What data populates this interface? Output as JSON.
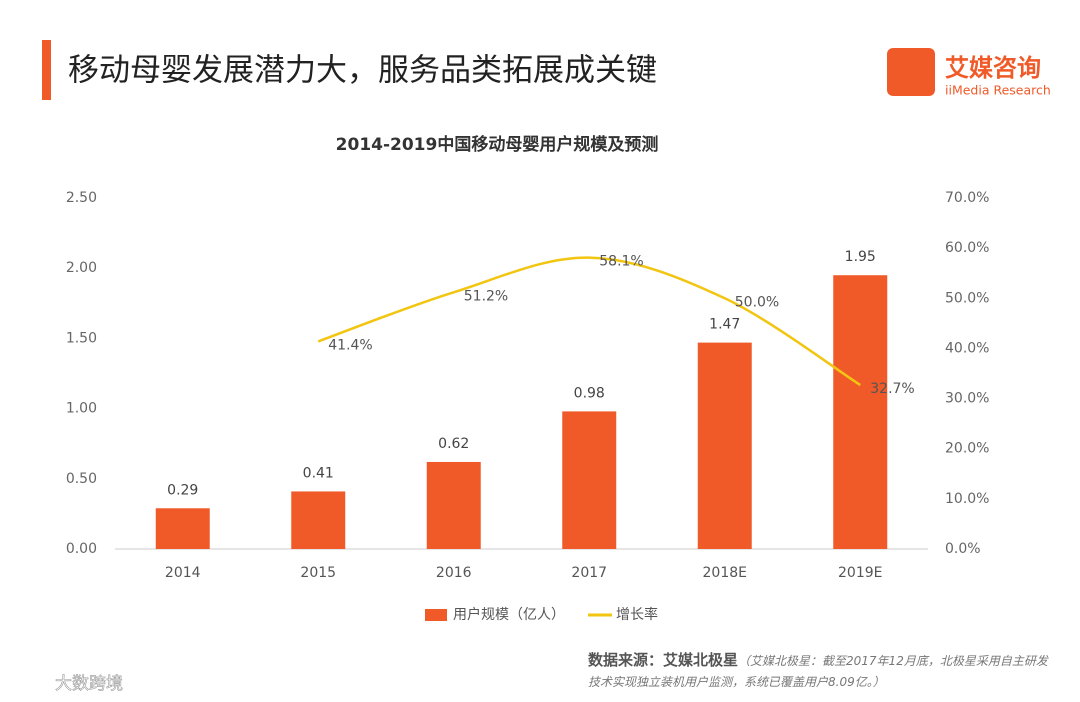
{
  "header": {
    "title": "移动母婴发展潜力大，服务品类拓展成关键",
    "logo": "艾媒咨询",
    "logo_sub": "iiMedia Research"
  },
  "chart_data": {
    "type": "bar",
    "title": "2014-2019中国移动母婴用户规模及预测",
    "categories": [
      "2014",
      "2015",
      "2016",
      "2017",
      "2018E",
      "2019E"
    ],
    "series": [
      {
        "name": "用户规模（亿人）",
        "color": "#f05a28",
        "values": [
          0.29,
          0.41,
          0.62,
          0.98,
          1.47,
          1.95
        ]
      },
      {
        "name": "增长率",
        "type": "line",
        "axis": "y2",
        "color": "#f2c511",
        "values": [
          null,
          41.4,
          51.2,
          58.1,
          50.0,
          32.7
        ],
        "value_labels": [
          null,
          "41.4%",
          "51.2%",
          "58.1%",
          "50.0%",
          "32.7%"
        ]
      }
    ],
    "ylim": [
      0,
      2.5
    ],
    "yticks": [
      {
        "value": 0,
        "label": "0.00"
      },
      {
        "value": 0.5,
        "label": "0.50"
      },
      {
        "value": 1,
        "label": "1.00"
      },
      {
        "value": 1.5,
        "label": "1.50"
      },
      {
        "value": 2,
        "label": "2.00"
      },
      {
        "value": 2.5,
        "label": "2.50"
      }
    ],
    "y2lim": [
      0,
      70
    ],
    "y2ticks": [
      {
        "value": 0,
        "label": "0.0%"
      },
      {
        "value": 10,
        "label": "10.0%"
      },
      {
        "value": 20,
        "label": "20.0%"
      },
      {
        "value": 30,
        "label": "30.0%"
      },
      {
        "value": 40,
        "label": "40.0%"
      },
      {
        "value": 50,
        "label": "50.0%"
      },
      {
        "value": 60,
        "label": "60.0%"
      },
      {
        "value": 70,
        "label": "70.0%"
      }
    ],
    "legend": "bottom"
  },
  "source": {
    "label": "数据来源：艾媒北极星",
    "note": "（艾媒北极星：截至2017年12月底，北极星采用自主研发技术实现独立装机用户监测，系统已覆盖用户8.09亿。）"
  },
  "watermark": "大数跨境"
}
